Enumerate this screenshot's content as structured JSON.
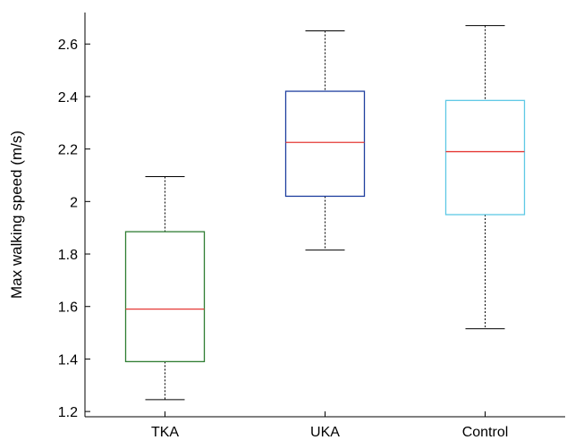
{
  "chart_data": {
    "type": "box",
    "title": "",
    "xlabel": "",
    "ylabel": "Max walking speed (m/s)",
    "ylim": [
      1.18,
      2.72
    ],
    "yticks": [
      1.2,
      1.4,
      1.6,
      1.8,
      2,
      2.2,
      2.4,
      2.6
    ],
    "ytick_labels": [
      "1.2",
      "1.4",
      "1.6",
      "1.8",
      "2",
      "2.2",
      "2.4",
      "2.6"
    ],
    "categories": [
      "TKA",
      "UKA",
      "Control"
    ],
    "boxes": [
      {
        "category": "TKA",
        "whisker_low": 1.245,
        "q1": 1.39,
        "median": 1.59,
        "q3": 1.885,
        "whisker_high": 2.095,
        "box_color": "#2e7d32"
      },
      {
        "category": "UKA",
        "whisker_low": 1.815,
        "q1": 2.02,
        "median": 2.225,
        "q3": 2.42,
        "whisker_high": 2.65,
        "box_color": "#1f3f9f"
      },
      {
        "category": "Control",
        "whisker_low": 1.515,
        "q1": 1.95,
        "median": 2.19,
        "q3": 2.385,
        "whisker_high": 2.67,
        "box_color": "#5ec8e5"
      }
    ],
    "median_color": "#e53935",
    "whisker_color": "#000000",
    "grid": false,
    "legend": "none"
  }
}
